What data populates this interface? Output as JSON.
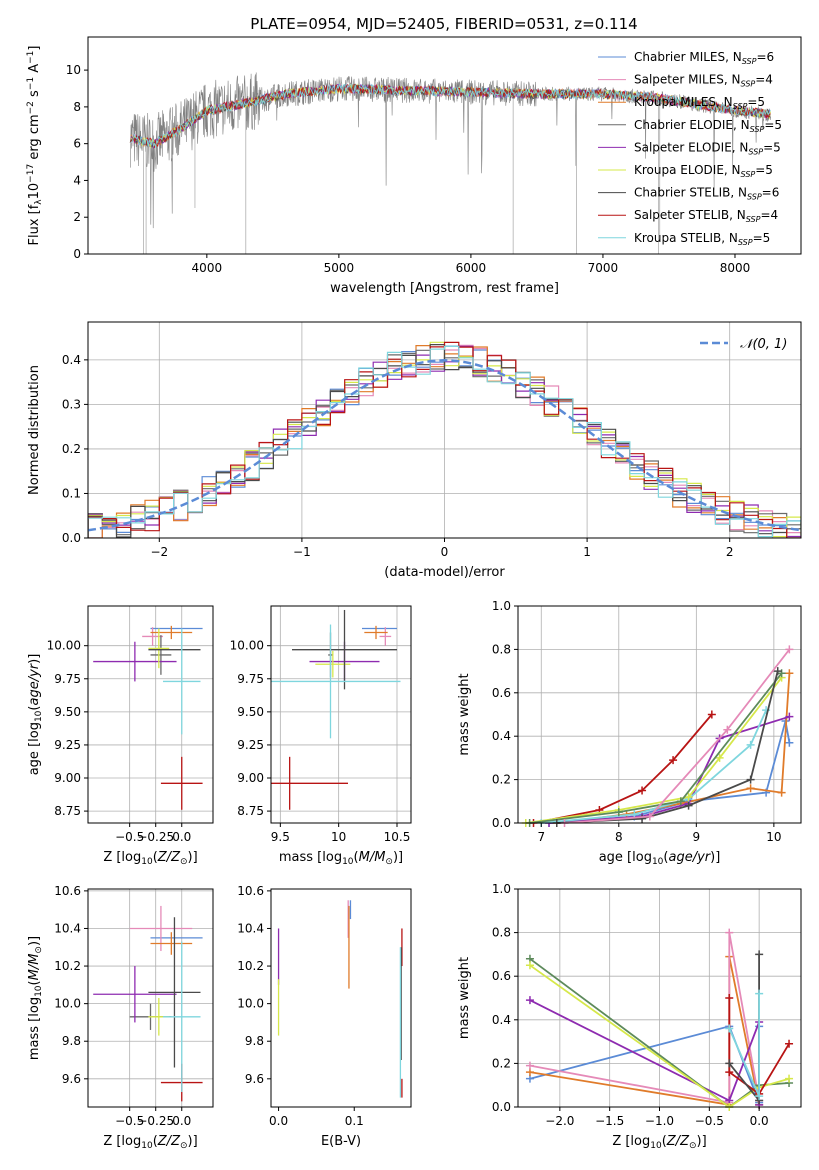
{
  "figure": {
    "title": "PLATE=0954, MJD=52405, FIBERID=0531, z=0.114"
  },
  "colors": {
    "chabrier_miles": "#5b8bd6",
    "salpeter_miles": "#e58ab8",
    "kroupa_miles": "#e07b2a",
    "chabrier_elodie": "#6a6a6a",
    "salpeter_elodie": "#8e2bb0",
    "kroupa_elodie": "#d6e84a",
    "chabrier_stelib": "#4a4a4a",
    "salpeter_stelib": "#b81414",
    "kroupa_stelib": "#7fd6de",
    "extra_green": "#5d8a5b",
    "gaussian": "#5b8bd6"
  },
  "chart_data": [
    {
      "id": "spectrum",
      "type": "line",
      "xlabel": "wavelength [Angstrom, rest frame]",
      "ylabel": "Flux [f_λ 10^-17 erg cm^-2 s^-1 A^-1]",
      "xlim": [
        3100,
        8500
      ],
      "ylim": [
        0,
        11.8
      ],
      "xticks": [
        4000,
        5000,
        6000,
        7000,
        8000
      ],
      "yticks": [
        0,
        2,
        4,
        6,
        8,
        10
      ],
      "grid": false,
      "legend_position": "upper-right",
      "series": [
        {
          "name": "Chabrier MILES, N_SSP=6",
          "color_key": "chabrier_miles"
        },
        {
          "name": "Salpeter MILES, N_SSP=4",
          "color_key": "salpeter_miles"
        },
        {
          "name": "Kroupa MILES, N_SSP=5",
          "color_key": "kroupa_miles"
        },
        {
          "name": "Chabrier ELODIE, N_SSP=5",
          "color_key": "chabrier_elodie"
        },
        {
          "name": "Salpeter ELODIE, N_SSP=5",
          "color_key": "salpeter_elodie"
        },
        {
          "name": "Kroupa ELODIE, N_SSP=5",
          "color_key": "kroupa_elodie"
        },
        {
          "name": "Chabrier STELIB, N_SSP=6",
          "color_key": "chabrier_stelib"
        },
        {
          "name": "Salpeter STELIB, N_SSP=4",
          "color_key": "salpeter_stelib"
        },
        {
          "name": "Kroupa STELIB, N_SSP=5",
          "color_key": "kroupa_stelib"
        }
      ],
      "continuum": [
        [
          3420,
          6.3
        ],
        [
          3600,
          6.0
        ],
        [
          3800,
          6.8
        ],
        [
          4000,
          7.8
        ],
        [
          4300,
          8.2
        ],
        [
          4600,
          8.7
        ],
        [
          5000,
          9.0
        ],
        [
          5500,
          8.9
        ],
        [
          6000,
          8.8
        ],
        [
          6500,
          8.7
        ],
        [
          7000,
          8.7
        ],
        [
          7400,
          8.5
        ],
        [
          8000,
          7.8
        ],
        [
          8270,
          7.6
        ]
      ]
    },
    {
      "id": "residuals",
      "type": "histogram",
      "xlabel": "(data-model)/error",
      "ylabel": "Normed distribution",
      "xlim": [
        -2.5,
        2.5
      ],
      "ylim": [
        0,
        0.485
      ],
      "xticks": [
        -2,
        -1,
        0,
        1,
        2
      ],
      "yticks": [
        0.0,
        0.1,
        0.2,
        0.3,
        0.4
      ],
      "grid": true,
      "legend_position": "upper-right",
      "legend_label": "𝒩(0, 1)",
      "bin_width": 0.1
    },
    {
      "id": "age_vs_z",
      "type": "errorbar",
      "xlabel": "Z [log10(Z/Z⊙)]",
      "ylabel": "age [log10(age/yr)]",
      "xlim": [
        -0.9,
        0.3
      ],
      "ylim": [
        8.66,
        10.3
      ],
      "xticks": [
        -0.5,
        -0.25,
        0.0
      ],
      "xticklabels": [
        "−0.5",
        "−0.25",
        "0.0"
      ],
      "yticks": [
        8.75,
        9.0,
        9.25,
        9.5,
        9.75,
        10.0
      ],
      "grid": true,
      "points": [
        {
          "color_key": "chabrier_miles",
          "x": -0.05,
          "xerr": 0.25,
          "y": 10.13,
          "yerr": 0.0
        },
        {
          "color_key": "salpeter_miles",
          "x": -0.28,
          "xerr": 0.1,
          "y": 10.07,
          "yerr": 0.07
        },
        {
          "color_key": "kroupa_miles",
          "x": -0.1,
          "xerr": 0.2,
          "y": 10.1,
          "yerr": 0.05
        },
        {
          "color_key": "chabrier_elodie",
          "x": -0.2,
          "xerr": 0.1,
          "y": 9.93,
          "yerr": 0.15
        },
        {
          "color_key": "salpeter_elodie",
          "x": -0.45,
          "xerr": 0.4,
          "y": 9.88,
          "yerr": 0.15
        },
        {
          "color_key": "kroupa_elodie",
          "x": -0.22,
          "xerr": 0.1,
          "y": 9.98,
          "yerr": 0.15
        },
        {
          "color_key": "chabrier_stelib",
          "x": -0.07,
          "xerr": 0.25,
          "y": 9.97,
          "yerr": 0.0
        },
        {
          "color_key": "salpeter_stelib",
          "x": 0.0,
          "xerr": 0.2,
          "y": 8.96,
          "yerr": 0.2
        },
        {
          "color_key": "kroupa_stelib",
          "x": 0.0,
          "xerr": 0.18,
          "y": 9.73,
          "yerr": 0.4
        }
      ]
    },
    {
      "id": "age_vs_mass",
      "type": "errorbar",
      "xlabel": "mass [log10(M/M⊙)]",
      "ylabel": "",
      "xlim": [
        9.42,
        10.62
      ],
      "ylim": [
        8.66,
        10.3
      ],
      "xticks": [
        9.5,
        10.0,
        10.5
      ],
      "yticks": [
        8.75,
        9.0,
        9.25,
        9.5,
        9.75,
        10.0
      ],
      "grid": true,
      "points": [
        {
          "color_key": "chabrier_miles",
          "x": 10.35,
          "xerr": 0.15,
          "y": 10.13,
          "yerr": 0.0
        },
        {
          "color_key": "salpeter_miles",
          "x": 10.4,
          "xerr": 0.05,
          "y": 10.07,
          "yerr": 0.07
        },
        {
          "color_key": "kroupa_miles",
          "x": 10.32,
          "xerr": 0.1,
          "y": 10.1,
          "yerr": 0.05
        },
        {
          "color_key": "chabrier_elodie",
          "x": 9.93,
          "xerr": 0.02,
          "y": 9.93,
          "yerr": 0.17
        },
        {
          "color_key": "salpeter_elodie",
          "x": 10.05,
          "xerr": 0.3,
          "y": 9.88,
          "yerr": 0.15
        },
        {
          "color_key": "kroupa_elodie",
          "x": 9.95,
          "xerr": 0.15,
          "y": 9.86,
          "yerr": 0.1
        },
        {
          "color_key": "chabrier_stelib",
          "x": 10.05,
          "xerr": 0.45,
          "y": 9.97,
          "yerr": 0.3
        },
        {
          "color_key": "salpeter_stelib",
          "x": 9.58,
          "xerr": 0.5,
          "y": 8.96,
          "yerr": 0.2
        },
        {
          "color_key": "kroupa_stelib",
          "x": 9.93,
          "xerr": 0.6,
          "y": 9.73,
          "yerr": 0.43
        }
      ]
    },
    {
      "id": "mass_weight_vs_age",
      "type": "line",
      "xlabel": "age [log10(age/yr)]",
      "ylabel": "mass weight",
      "xlim": [
        6.7,
        10.35
      ],
      "ylim": [
        0,
        1.0
      ],
      "xticks": [
        7,
        8,
        9,
        10
      ],
      "yticks": [
        0.0,
        0.2,
        0.4,
        0.6,
        0.8,
        1.0
      ],
      "grid": true,
      "series": [
        {
          "color_key": "chabrier_miles",
          "x": [
            7.1,
            8.2,
            8.9,
            9.9,
            10.15,
            10.2
          ],
          "y": [
            0.0,
            0.03,
            0.1,
            0.14,
            0.47,
            0.37
          ]
        },
        {
          "color_key": "kroupa_miles",
          "x": [
            7.2,
            8.1,
            8.8,
            9.7,
            10.1,
            10.2
          ],
          "y": [
            0.0,
            0.04,
            0.09,
            0.16,
            0.14,
            0.69
          ]
        },
        {
          "color_key": "salpeter_stelib",
          "x": [
            6.9,
            7.75,
            8.3,
            8.7,
            9.2
          ],
          "y": [
            0.0,
            0.06,
            0.15,
            0.29,
            0.5
          ]
        },
        {
          "color_key": "salpeter_elodie",
          "x": [
            7.1,
            8.3,
            8.9,
            9.3,
            10.2
          ],
          "y": [
            0.0,
            0.03,
            0.09,
            0.39,
            0.49
          ]
        },
        {
          "color_key": "kroupa_stelib",
          "x": [
            7.0,
            8.2,
            8.9,
            9.7,
            9.9
          ],
          "y": [
            0.0,
            0.04,
            0.11,
            0.36,
            0.52
          ]
        },
        {
          "color_key": "kroupa_elodie",
          "x": [
            6.8,
            8.0,
            8.9,
            9.3,
            10.1
          ],
          "y": [
            0.0,
            0.06,
            0.12,
            0.3,
            0.67
          ]
        },
        {
          "color_key": "extra_green",
          "x": [
            6.85,
            8.0,
            8.8,
            10.1
          ],
          "y": [
            0.0,
            0.05,
            0.1,
            0.69
          ]
        },
        {
          "color_key": "chabrier_stelib",
          "x": [
            7.2,
            8.3,
            8.9,
            9.7,
            10.05
          ],
          "y": [
            0.0,
            0.02,
            0.08,
            0.2,
            0.7
          ]
        },
        {
          "color_key": "salpeter_miles",
          "x": [
            7.3,
            8.4,
            9.4,
            10.2
          ],
          "y": [
            0.0,
            0.03,
            0.43,
            0.8
          ]
        }
      ]
    },
    {
      "id": "mass_vs_z",
      "type": "errorbar",
      "xlabel": "Z [log10(Z/Z⊙)]",
      "ylabel": "mass [log10(M/M⊙)]",
      "xlim": [
        -0.9,
        0.3
      ],
      "ylim": [
        9.45,
        10.61
      ],
      "xticks": [
        -0.5,
        -0.25,
        0.0
      ],
      "xticklabels": [
        "−0.5",
        "−0.25",
        "0.0"
      ],
      "yticks": [
        9.6,
        9.8,
        10.0,
        10.2,
        10.4,
        10.6
      ],
      "grid": true,
      "points": [
        {
          "color_key": "chabrier_miles",
          "x": -0.05,
          "xerr": 0.25,
          "y": 10.35,
          "yerr": 0.0
        },
        {
          "color_key": "salpeter_miles",
          "x": -0.2,
          "xerr": 0.3,
          "y": 10.4,
          "yerr": 0.12
        },
        {
          "color_key": "kroupa_miles",
          "x": -0.1,
          "xerr": 0.2,
          "y": 10.32,
          "yerr": 0.06
        },
        {
          "color_key": "chabrier_elodie",
          "x": -0.3,
          "xerr": 0.2,
          "y": 9.93,
          "yerr": 0.07
        },
        {
          "color_key": "salpeter_elodie",
          "x": -0.45,
          "xerr": 0.4,
          "y": 10.05,
          "yerr": 0.15
        },
        {
          "color_key": "kroupa_elodie",
          "x": -0.22,
          "xerr": 0.1,
          "y": 9.93,
          "yerr": 0.1
        },
        {
          "color_key": "chabrier_stelib",
          "x": -0.07,
          "xerr": 0.25,
          "y": 10.06,
          "yerr": 0.4
        },
        {
          "color_key": "salpeter_stelib",
          "x": 0.0,
          "xerr": 0.2,
          "y": 9.58,
          "yerr": 0.1
        },
        {
          "color_key": "kroupa_stelib",
          "x": 0.0,
          "xerr": 0.18,
          "y": 9.93,
          "yerr": 0.4
        }
      ]
    },
    {
      "id": "mass_vs_ebv",
      "type": "errorbar",
      "xlabel": "E(B-V)",
      "ylabel": "",
      "xlim": [
        -0.01,
        0.175
      ],
      "ylim": [
        9.45,
        10.61
      ],
      "xticks": [
        0.0,
        0.1
      ],
      "xticklabels": [
        "0.0",
        "0.1"
      ],
      "yticks": [
        9.6,
        9.8,
        10.0,
        10.2,
        10.4,
        10.6
      ],
      "grid": false,
      "points": [
        {
          "color_key": "salpeter_elodie",
          "x": 0.0,
          "xerr": 0.0,
          "y": 10.25,
          "yerr": 0.15
        },
        {
          "color_key": "kroupa_elodie",
          "x": 0.0,
          "xerr": 0.0,
          "y": 9.98,
          "yerr": 0.15
        },
        {
          "color_key": "salpeter_miles",
          "x": 0.092,
          "xerr": 0.0,
          "y": 10.45,
          "yerr": 0.1
        },
        {
          "color_key": "kroupa_miles",
          "x": 0.093,
          "xerr": 0.0,
          "y": 10.3,
          "yerr": 0.22
        },
        {
          "color_key": "chabrier_miles",
          "x": 0.095,
          "xerr": 0.0,
          "y": 10.5,
          "yerr": 0.05
        },
        {
          "color_key": "salpeter_stelib",
          "x": 0.163,
          "xerr": 0.0,
          "y": 10.3,
          "yerr": 0.1
        },
        {
          "color_key": "chabrier_stelib",
          "x": 0.162,
          "xerr": 0.0,
          "y": 10.0,
          "yerr": 0.3
        },
        {
          "color_key": "kroupa_stelib",
          "x": 0.161,
          "xerr": 0.0,
          "y": 9.9,
          "yerr": 0.4
        },
        {
          "color_key": "salpeter_stelib",
          "x": 0.163,
          "xerr": 0.0,
          "y": 9.55,
          "yerr": 0.05
        }
      ]
    },
    {
      "id": "mass_weight_vs_z",
      "type": "line",
      "xlabel": "Z [log10(Z/Z⊙)]",
      "ylabel": "mass weight",
      "xlim": [
        -2.42,
        0.42
      ],
      "ylim": [
        0,
        1.0
      ],
      "xticks": [
        -2.0,
        -1.5,
        -1.0,
        -0.5,
        0.0
      ],
      "xticklabels": [
        "−2.0",
        "−1.5",
        "−1.0",
        "−0.5",
        "0.0"
      ],
      "yticks": [
        0.0,
        0.2,
        0.4,
        0.6,
        0.8,
        1.0
      ],
      "grid": true,
      "series": [
        {
          "color_key": "chabrier_miles",
          "x": [
            -2.3,
            -0.3,
            0.0,
            0.0
          ],
          "y": [
            0.13,
            0.37,
            0.02,
            0.37
          ]
        },
        {
          "color_key": "kroupa_miles",
          "x": [
            -2.3,
            -0.3,
            -0.3,
            0.0
          ],
          "y": [
            0.16,
            0.01,
            0.69,
            0.01
          ]
        },
        {
          "color_key": "salpeter_miles",
          "x": [
            -2.3,
            -0.3,
            -0.3,
            0.0
          ],
          "y": [
            0.19,
            0.02,
            0.8,
            0.03
          ]
        },
        {
          "color_key": "salpeter_elodie",
          "x": [
            -2.3,
            -0.3,
            0.0,
            0.0
          ],
          "y": [
            0.49,
            0.03,
            0.39,
            0.01
          ]
        },
        {
          "color_key": "extra_green",
          "x": [
            -2.3,
            -0.3,
            0.0,
            0.3
          ],
          "y": [
            0.68,
            0.0,
            0.1,
            0.11
          ]
        },
        {
          "color_key": "kroupa_elodie",
          "x": [
            -2.3,
            -0.3,
            0.0,
            0.3
          ],
          "y": [
            0.65,
            0.0,
            0.09,
            0.13
          ]
        },
        {
          "color_key": "salpeter_stelib",
          "x": [
            -0.3,
            -0.3,
            0.0,
            0.3
          ],
          "y": [
            0.5,
            0.16,
            0.06,
            0.29
          ]
        },
        {
          "color_key": "chabrier_stelib",
          "x": [
            -0.3,
            0.0,
            0.0
          ],
          "y": [
            0.2,
            0.03,
            0.7
          ]
        },
        {
          "color_key": "kroupa_stelib",
          "x": [
            -0.3,
            0.0,
            0.0
          ],
          "y": [
            0.36,
            0.05,
            0.52
          ]
        }
      ]
    }
  ]
}
